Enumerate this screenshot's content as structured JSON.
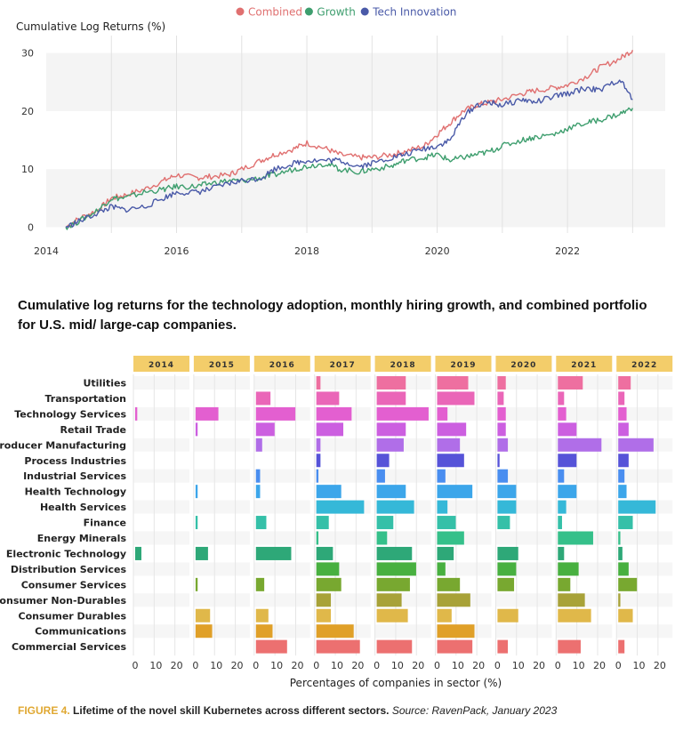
{
  "chart_data": [
    {
      "type": "line",
      "ylabel": "Cumulative Log Returns (%)",
      "ylim": [
        -1,
        33
      ],
      "yticks": [
        0,
        10,
        20,
        30
      ],
      "xlim": [
        2014,
        2023.5
      ],
      "xticks": [
        2014,
        2016,
        2018,
        2020,
        2022
      ],
      "legend": "top-center",
      "grid": "horizontal bands and vertical year lines",
      "series": [
        {
          "name": "Combined",
          "color": "#e07070",
          "x": [
            2014.3,
            2014.5,
            2014.8,
            2015.0,
            2015.2,
            2015.5,
            2015.8,
            2016.0,
            2016.3,
            2016.5,
            2016.8,
            2017.0,
            2017.3,
            2017.5,
            2017.8,
            2018.0,
            2018.3,
            2018.5,
            2018.8,
            2019.0,
            2019.3,
            2019.5,
            2019.8,
            2020.0,
            2020.2,
            2020.4,
            2020.6,
            2020.8,
            2021.0,
            2021.3,
            2021.5,
            2021.8,
            2022.0,
            2022.3,
            2022.5,
            2022.8,
            2023.0
          ],
          "values": [
            0,
            1.5,
            3,
            5,
            5.5,
            6.5,
            8,
            9,
            8.5,
            8.7,
            9,
            10,
            11.5,
            12.5,
            13.5,
            14.5,
            13.5,
            12.5,
            12,
            12,
            12.5,
            13,
            14,
            16,
            18,
            20,
            21,
            21.5,
            22,
            23,
            23.5,
            24,
            24.5,
            26,
            27.5,
            29,
            30.5
          ]
        },
        {
          "name": "Growth",
          "color": "#3e9e6e",
          "x": [
            2014.3,
            2014.5,
            2014.8,
            2015.0,
            2015.2,
            2015.5,
            2015.8,
            2016.0,
            2016.3,
            2016.5,
            2016.8,
            2017.0,
            2017.3,
            2017.5,
            2017.8,
            2018.0,
            2018.3,
            2018.5,
            2018.8,
            2019.0,
            2019.3,
            2019.5,
            2019.8,
            2020.0,
            2020.2,
            2020.4,
            2020.6,
            2020.8,
            2021.0,
            2021.3,
            2021.5,
            2021.8,
            2022.0,
            2022.3,
            2022.5,
            2022.8,
            2023.0
          ],
          "values": [
            0,
            1,
            3,
            5,
            5,
            6,
            6.5,
            7,
            7,
            7.5,
            8,
            8,
            8.5,
            9,
            10,
            10.5,
            11,
            10,
            9.5,
            10,
            10.5,
            11.5,
            12,
            12.5,
            11.5,
            12,
            12.5,
            13,
            14,
            15,
            15.5,
            16,
            17,
            18,
            18.5,
            19.5,
            20.5
          ]
        },
        {
          "name": "Tech Innovation",
          "color": "#4a5aa8",
          "x": [
            2014.3,
            2014.5,
            2014.8,
            2015.0,
            2015.2,
            2015.5,
            2015.8,
            2016.0,
            2016.3,
            2016.5,
            2016.8,
            2017.0,
            2017.3,
            2017.5,
            2017.8,
            2018.0,
            2018.3,
            2018.5,
            2018.8,
            2019.0,
            2019.3,
            2019.5,
            2019.8,
            2020.0,
            2020.2,
            2020.4,
            2020.6,
            2020.8,
            2021.0,
            2021.3,
            2021.5,
            2021.8,
            2022.0,
            2022.3,
            2022.5,
            2022.8,
            2023.0
          ],
          "values": [
            0,
            1,
            2.5,
            3.5,
            3,
            3.5,
            5,
            6,
            6,
            6.5,
            7.5,
            8,
            8.5,
            10,
            11,
            11.5,
            11.5,
            11.5,
            10.5,
            11,
            12,
            12.5,
            13.5,
            14,
            15,
            19,
            21,
            21.5,
            21,
            22,
            21.5,
            22.5,
            23,
            24,
            23.5,
            25.5,
            22
          ]
        }
      ]
    },
    {
      "type": "bar",
      "orientation": "horizontal",
      "facets": [
        "2014",
        "2015",
        "2016",
        "2017",
        "2018",
        "2019",
        "2020",
        "2021",
        "2022"
      ],
      "categories": [
        "Utilities",
        "Transportation",
        "Technology Services",
        "Retail Trade",
        "Producer Manufacturing",
        "Process Industries",
        "Industrial Services",
        "Health Technology",
        "Health Services",
        "Finance",
        "Energy Minerals",
        "Electronic Technology",
        "Distribution Services",
        "Consumer Services",
        "Consumer Non-Durables",
        "Consumer Durables",
        "Communications",
        "Commercial Services"
      ],
      "colors": [
        "#ee6fa0",
        "#ea66b8",
        "#e35fd0",
        "#cc5fe0",
        "#b06ee8",
        "#5653d8",
        "#4a8ef0",
        "#3ca6ea",
        "#35b8d8",
        "#35c0a8",
        "#35c08a",
        "#2ea878",
        "#48b040",
        "#78a830",
        "#a8a238",
        "#e0b84a",
        "#e0a028",
        "#ec7070"
      ],
      "xticks": [
        0,
        10,
        20
      ],
      "xlim": [
        0,
        27
      ],
      "xlabel": "Percentages of companies in sector (%)",
      "values": {
        "2014": [
          0,
          0,
          1,
          0,
          0,
          0,
          0,
          0,
          0,
          0,
          0,
          3,
          0,
          0,
          0,
          0,
          0,
          0
        ],
        "2015": [
          0,
          0,
          11,
          1,
          0,
          0,
          0,
          1,
          0,
          1,
          0,
          6,
          0,
          1,
          0,
          7,
          8,
          0
        ],
        "2016": [
          0,
          7,
          19,
          9,
          3,
          0,
          2,
          2,
          0,
          5,
          0,
          17,
          0,
          4,
          0,
          6,
          8,
          15
        ],
        "2017": [
          2,
          11,
          17,
          13,
          2,
          2,
          1,
          12,
          23,
          6,
          1,
          8,
          11,
          12,
          7,
          7,
          18,
          21
        ],
        "2018": [
          14,
          14,
          25,
          14,
          13,
          6,
          4,
          14,
          18,
          8,
          5,
          17,
          19,
          16,
          12,
          15,
          0,
          17
        ],
        "2019": [
          15,
          18,
          5,
          14,
          11,
          13,
          4,
          17,
          5,
          9,
          13,
          8,
          4,
          11,
          16,
          7,
          18,
          17
        ],
        "2020": [
          4,
          3,
          4,
          4,
          5,
          1,
          5,
          9,
          9,
          6,
          0,
          10,
          9,
          8,
          0,
          10,
          0,
          5
        ],
        "2021": [
          12,
          3,
          4,
          9,
          21,
          9,
          3,
          9,
          4,
          2,
          17,
          3,
          10,
          6,
          13,
          16,
          0,
          11
        ],
        "2022": [
          6,
          3,
          4,
          5,
          17,
          5,
          3,
          4,
          18,
          7,
          1,
          2,
          5,
          9,
          1,
          7,
          0,
          3
        ]
      }
    }
  ],
  "caption_mid": "Cumulative log returns for the technology adoption, monthly hiring growth, and combined portfolio for U.S. mid/ large-cap companies.",
  "figure": {
    "number": "FIGURE 4.",
    "title": "Lifetime of the novel skill Kubernetes across different sectors.",
    "source": "Source: RavenPack, January 2023"
  }
}
